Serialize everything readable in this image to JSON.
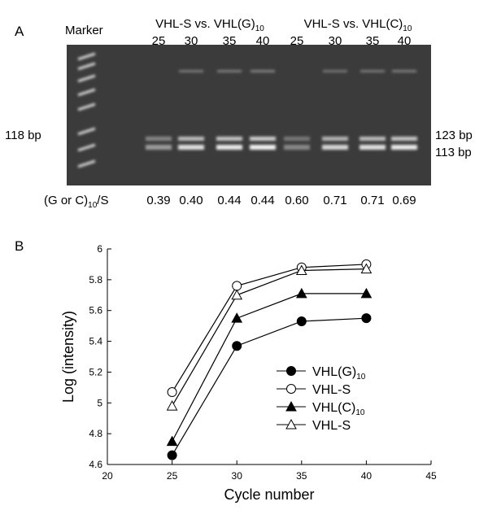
{
  "panel_a": {
    "label": "A",
    "marker": "Marker",
    "groups": [
      {
        "text": "VHL-S vs. VHL(G)",
        "sub": "10",
        "lanes": [
          "25",
          "30",
          "35",
          "40"
        ]
      },
      {
        "text": "VHL-S vs. VHL(C)",
        "sub": "10",
        "lanes": [
          "25",
          "30",
          "35",
          "40"
        ]
      }
    ],
    "left_band": "118 bp",
    "right_bands": [
      "123 bp",
      "113 bp"
    ],
    "ratio_label": {
      "text": "(G or C)",
      "sub": "10",
      "after": "/S"
    },
    "ratios": [
      "0.39",
      "0.40",
      "0.44",
      "0.44",
      "0.60",
      "0.71",
      "0.71",
      "0.69"
    ]
  },
  "chart_data": {
    "type": "line",
    "panel_label": "B",
    "x_label": "Cycle number",
    "y_label": "Log (intensity)",
    "x": [
      25,
      30,
      35,
      40
    ],
    "xlim": [
      20,
      45
    ],
    "xticks": [
      20,
      25,
      30,
      35,
      40,
      45
    ],
    "ylim": [
      4.6,
      6
    ],
    "yticks": [
      4.6,
      4.8,
      5,
      5.2,
      5.4,
      5.6,
      5.8,
      6
    ],
    "series": [
      {
        "name": "VHL(G)",
        "name_sub": "10",
        "color": "#000000",
        "marker": "circle",
        "filled": true,
        "values": [
          4.66,
          5.37,
          5.53,
          5.55
        ]
      },
      {
        "name": "VHL-S",
        "color": "#000000",
        "marker": "circle",
        "filled": false,
        "values": [
          5.07,
          5.76,
          5.88,
          5.9
        ]
      },
      {
        "name": "VHL(C)",
        "name_sub": "10",
        "color": "#000000",
        "marker": "triangle",
        "filled": true,
        "values": [
          4.75,
          5.55,
          5.71,
          5.71
        ]
      },
      {
        "name": "VHL-S",
        "color": "#000000",
        "marker": "triangle",
        "filled": false,
        "values": [
          4.98,
          5.7,
          5.86,
          5.87
        ]
      }
    ]
  }
}
